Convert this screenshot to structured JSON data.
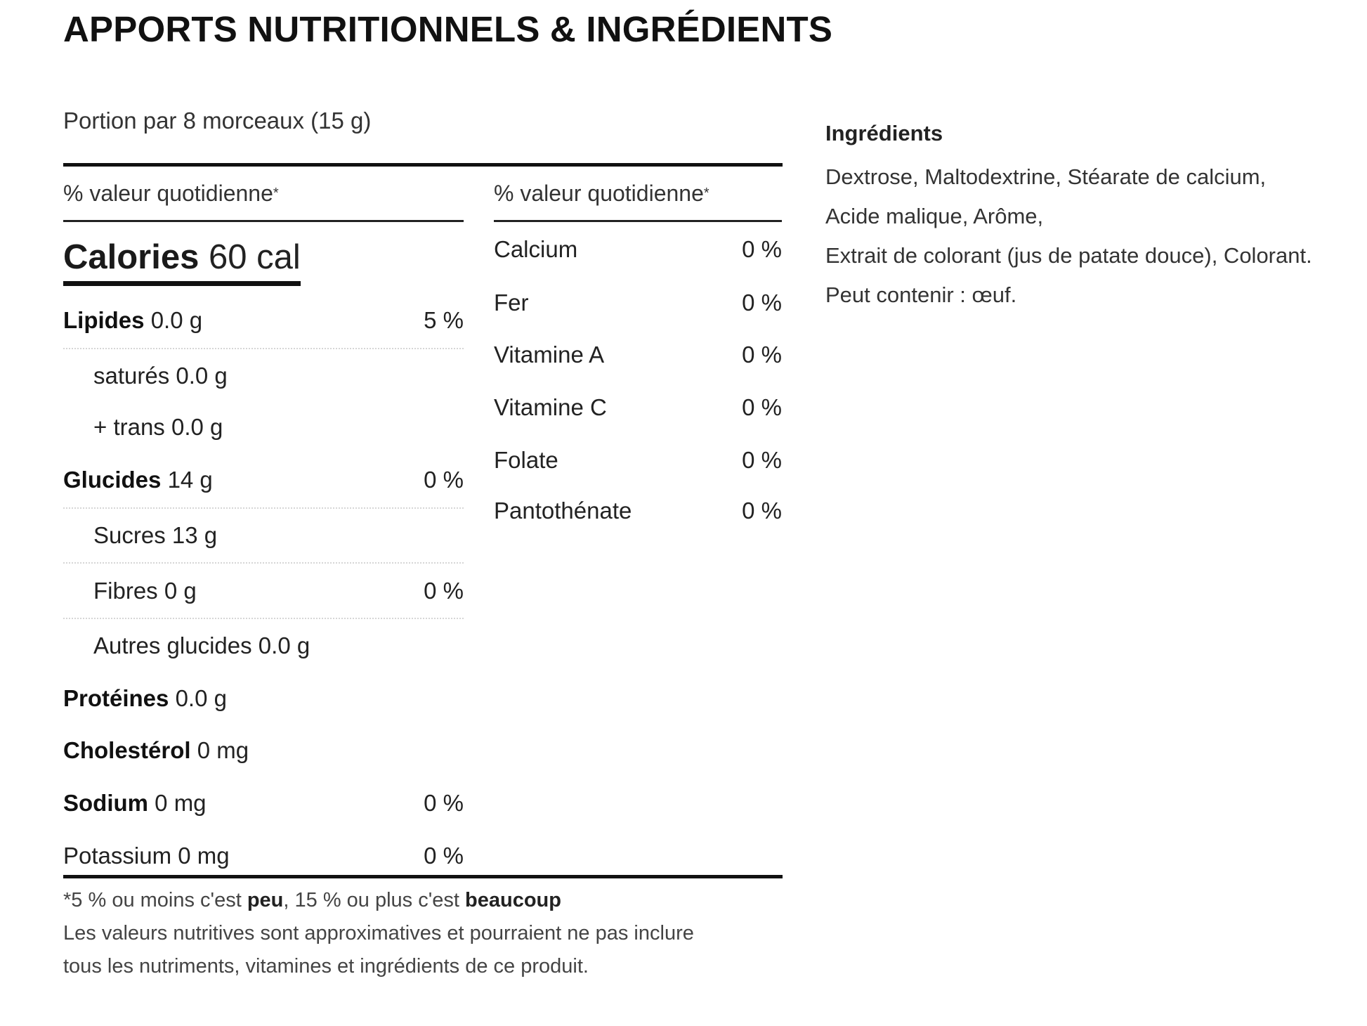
{
  "title": "APPORTS NUTRITIONNELS & INGRÉDIENTS",
  "serving": "Portion par 8 morceaux (15 g)",
  "left_column": {
    "dv_header": "% valeur quotidienne",
    "dv_star": "*",
    "calories_label": "Calories",
    "calories_value": "60 cal",
    "rows": [
      {
        "label": "Lipides",
        "value": "0.0 g",
        "percent": "5 %"
      },
      {
        "label": "saturés",
        "value": "0.0 g",
        "percent": ""
      },
      {
        "label": "+ trans",
        "value": "0.0 g",
        "percent": ""
      },
      {
        "label": "Glucides",
        "value": "14 g",
        "percent": "0 %"
      },
      {
        "label": "Sucres",
        "value": "13 g",
        "percent": ""
      },
      {
        "label": "Fibres",
        "value": "0 g",
        "percent": "0 %"
      },
      {
        "label": "Autres glucides",
        "value": "0.0 g",
        "percent": ""
      },
      {
        "label": "Protéines",
        "value": "0.0 g",
        "percent": ""
      },
      {
        "label": "Cholestérol",
        "value": "0 mg",
        "percent": ""
      },
      {
        "label": "Sodium",
        "value": "0 mg",
        "percent": "0 %"
      },
      {
        "label": "Potassium",
        "value": "0 mg",
        "percent": "0 %"
      }
    ]
  },
  "middle_column": {
    "dv_header": "% valeur quotidienne",
    "dv_star": "*",
    "rows": [
      {
        "label": "Calcium",
        "percent": "0 %"
      },
      {
        "label": "Fer",
        "percent": "0 %"
      },
      {
        "label": "Vitamine A",
        "percent": "0 %"
      },
      {
        "label": "Vitamine C",
        "percent": "0 %"
      },
      {
        "label": "Folate",
        "percent": "0 %"
      },
      {
        "label": "Pantothénate",
        "percent": "0 %"
      }
    ]
  },
  "footnote": {
    "part1": "*5 % ou moins c'est ",
    "low": "peu",
    "part2": ", 15 % ou plus c'est ",
    "high": "beaucoup",
    "line2": "Les valeurs nutritives sont approximatives et pourraient ne pas inclure",
    "line3": "tous les nutriments, vitamines et ingrédients de ce produit."
  },
  "ingredients": {
    "title": "Ingrédients",
    "lines": [
      "Dextrose, Maltodextrine, Stéarate de calcium,",
      "Acide malique, Arôme,",
      "Extrait de colorant (jus de patate douce), Colorant.",
      "Peut contenir : œuf."
    ]
  }
}
